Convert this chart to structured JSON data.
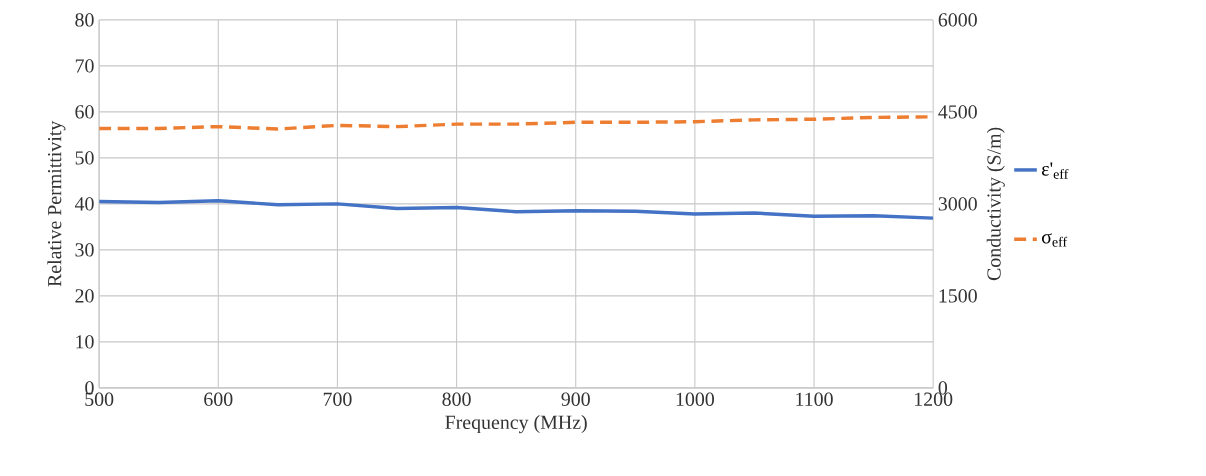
{
  "chart_data": {
    "type": "line",
    "xlabel": "Frequency (MHz)",
    "ylabel": "Relative Permittivity",
    "y2label": "Conductivity (S/m)",
    "x": [
      500,
      550,
      600,
      650,
      700,
      750,
      800,
      850,
      900,
      950,
      1000,
      1050,
      1100,
      1150,
      1200
    ],
    "series": [
      {
        "name": "ε'$_{eff}$",
        "color": "#4472c4",
        "line_style": "solid",
        "values": [
          40.5,
          40.3,
          40.7,
          39.8,
          40.0,
          39.0,
          39.2,
          38.3,
          38.5,
          38.4,
          37.8,
          38.0,
          37.3,
          37.4,
          36.9
        ]
      },
      {
        "name": "σ$_{eff}$",
        "color": "#ed7d31",
        "line_style": "dashed",
        "axis": "y2",
        "values": [
          4230,
          4230,
          4260,
          4220,
          4280,
          4260,
          4300,
          4300,
          4330,
          4330,
          4340,
          4370,
          4380,
          4410,
          4420
        ]
      }
    ],
    "xlim": [
      500,
      1200
    ],
    "xticks": [
      500,
      600,
      700,
      800,
      900,
      1000,
      1100,
      1200
    ],
    "ylim": [
      0,
      80
    ],
    "yticks": [
      0,
      10,
      20,
      30,
      40,
      50,
      60,
      70,
      80
    ],
    "y2lim": [
      0,
      6000
    ],
    "y2ticks": [
      0,
      1500,
      3000,
      4500,
      6000
    ],
    "grid": true,
    "legend": "right",
    "marker": "none"
  }
}
